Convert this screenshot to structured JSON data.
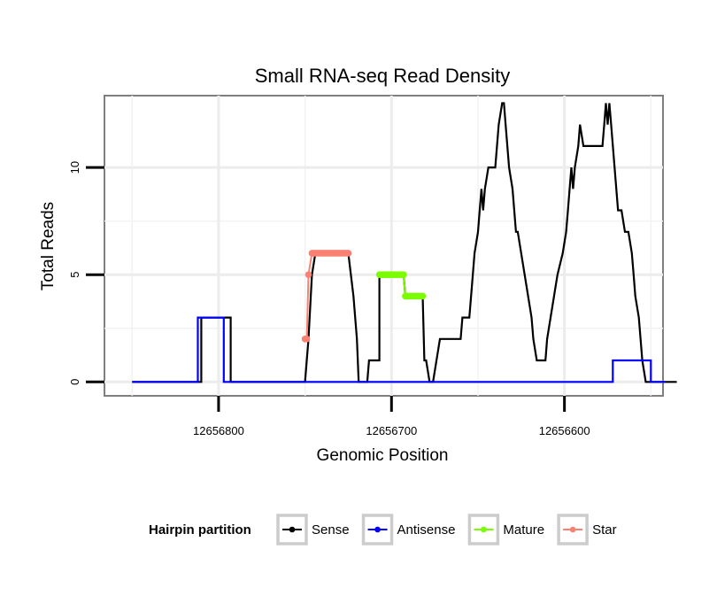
{
  "chart_data": {
    "type": "line",
    "title": "Small RNA-seq Read Density",
    "xlabel": "Genomic Position",
    "ylabel": "Total Reads",
    "x_reversed": true,
    "xlim": [
      12656866,
      12656543
    ],
    "ylim": [
      -0.65,
      13.35
    ],
    "x_ticks": [
      12656800,
      12656700,
      12656600
    ],
    "x_tick_labels": [
      "12656800",
      "12656700",
      "12656600"
    ],
    "y_ticks": [
      0,
      5,
      10
    ],
    "y_tick_labels": [
      "0",
      "5",
      "10"
    ],
    "grid": true,
    "legend": {
      "title": "Hairpin partition",
      "position": "bottom",
      "entries": [
        {
          "label": "Sense",
          "color": "#000000"
        },
        {
          "label": "Antisense",
          "color": "#0000ff"
        },
        {
          "label": "Mature",
          "color": "#7cfc00"
        },
        {
          "label": "Star",
          "color": "#fa8072"
        }
      ]
    },
    "series": [
      {
        "name": "Sense",
        "color": "#000000",
        "points": [
          [
            12656850,
            0
          ],
          [
            12656810,
            0
          ],
          [
            12656810,
            3
          ],
          [
            12656793,
            3
          ],
          [
            12656793,
            0
          ],
          [
            12656750,
            0
          ],
          [
            12656748,
            2
          ],
          [
            12656746,
            5
          ],
          [
            12656744,
            6
          ],
          [
            12656725,
            6
          ],
          [
            12656722,
            4
          ],
          [
            12656720,
            2
          ],
          [
            12656719,
            0
          ],
          [
            12656714,
            0
          ],
          [
            12656713,
            1
          ],
          [
            12656707,
            1
          ],
          [
            12656707,
            5
          ],
          [
            12656693,
            5
          ],
          [
            12656692,
            4
          ],
          [
            12656682,
            4
          ],
          [
            12656681,
            1
          ],
          [
            12656680,
            1
          ],
          [
            12656678,
            0
          ],
          [
            12656676,
            0
          ],
          [
            12656674,
            1
          ],
          [
            12656672,
            2
          ],
          [
            12656660,
            2
          ],
          [
            12656659,
            3
          ],
          [
            12656655,
            3
          ],
          [
            12656654,
            4
          ],
          [
            12656652,
            6
          ],
          [
            12656650,
            7
          ],
          [
            12656649,
            8
          ],
          [
            12656648,
            9
          ],
          [
            12656647,
            8
          ],
          [
            12656646,
            9
          ],
          [
            12656644,
            10
          ],
          [
            12656640,
            10
          ],
          [
            12656638,
            12
          ],
          [
            12656636,
            13
          ],
          [
            12656635,
            13
          ],
          [
            12656634,
            12
          ],
          [
            12656632,
            10
          ],
          [
            12656630,
            9
          ],
          [
            12656628,
            7
          ],
          [
            12656627,
            7
          ],
          [
            12656625,
            6
          ],
          [
            12656623,
            5
          ],
          [
            12656621,
            4
          ],
          [
            12656619,
            3
          ],
          [
            12656618,
            2
          ],
          [
            12656616,
            1
          ],
          [
            12656611,
            1
          ],
          [
            12656610,
            2
          ],
          [
            12656608,
            3
          ],
          [
            12656606,
            4
          ],
          [
            12656604,
            5
          ],
          [
            12656601,
            6
          ],
          [
            12656599,
            7
          ],
          [
            12656598,
            8
          ],
          [
            12656597,
            9
          ],
          [
            12656596,
            10
          ],
          [
            12656595,
            9
          ],
          [
            12656594,
            10
          ],
          [
            12656592,
            11
          ],
          [
            12656591,
            12
          ],
          [
            12656589,
            11
          ],
          [
            12656578,
            11
          ],
          [
            12656577,
            12
          ],
          [
            12656576,
            13
          ],
          [
            12656575,
            12
          ],
          [
            12656574,
            13
          ],
          [
            12656573,
            12
          ],
          [
            12656571,
            10
          ],
          [
            12656569,
            8
          ],
          [
            12656567,
            8
          ],
          [
            12656565,
            7
          ],
          [
            12656563,
            7
          ],
          [
            12656561,
            6
          ],
          [
            12656560,
            5
          ],
          [
            12656559,
            4
          ],
          [
            12656557,
            3
          ],
          [
            12656555,
            1
          ],
          [
            12656553,
            0
          ],
          [
            12656535,
            0
          ]
        ]
      },
      {
        "name": "Antisense",
        "color": "#0000ff",
        "points": [
          [
            12656850,
            0
          ],
          [
            12656812,
            0
          ],
          [
            12656812,
            3
          ],
          [
            12656797,
            3
          ],
          [
            12656797,
            0
          ],
          [
            12656572,
            0
          ],
          [
            12656572,
            1
          ],
          [
            12656550,
            1
          ],
          [
            12656550,
            0
          ],
          [
            12656542,
            0
          ]
        ]
      },
      {
        "name": "Mature",
        "color": "#7cfc00",
        "points": [
          [
            12656707,
            5
          ],
          [
            12656706,
            5
          ],
          [
            12656705,
            5
          ],
          [
            12656704,
            5
          ],
          [
            12656703,
            5
          ],
          [
            12656702,
            5
          ],
          [
            12656701,
            5
          ],
          [
            12656700,
            5
          ],
          [
            12656699,
            5
          ],
          [
            12656698,
            5
          ],
          [
            12656697,
            5
          ],
          [
            12656696,
            5
          ],
          [
            12656695,
            5
          ],
          [
            12656694,
            5
          ],
          [
            12656693,
            5
          ],
          [
            12656692,
            4
          ],
          [
            12656691,
            4
          ],
          [
            12656690,
            4
          ],
          [
            12656689,
            4
          ],
          [
            12656688,
            4
          ],
          [
            12656687,
            4
          ],
          [
            12656686,
            4
          ],
          [
            12656685,
            4
          ],
          [
            12656684,
            4
          ],
          [
            12656683,
            4
          ],
          [
            12656682,
            4
          ]
        ]
      },
      {
        "name": "Star",
        "color": "#fa8072",
        "points": [
          [
            12656750,
            2
          ],
          [
            12656749,
            2
          ],
          [
            12656748,
            5
          ],
          [
            12656746,
            6
          ],
          [
            12656745,
            6
          ],
          [
            12656744,
            6
          ],
          [
            12656743,
            6
          ],
          [
            12656742,
            6
          ],
          [
            12656741,
            6
          ],
          [
            12656740,
            6
          ],
          [
            12656739,
            6
          ],
          [
            12656738,
            6
          ],
          [
            12656737,
            6
          ],
          [
            12656736,
            6
          ],
          [
            12656735,
            6
          ],
          [
            12656734,
            6
          ],
          [
            12656733,
            6
          ],
          [
            12656732,
            6
          ],
          [
            12656731,
            6
          ],
          [
            12656730,
            6
          ],
          [
            12656729,
            6
          ],
          [
            12656728,
            6
          ],
          [
            12656727,
            6
          ],
          [
            12656726,
            6
          ],
          [
            12656725,
            6
          ]
        ]
      }
    ]
  }
}
